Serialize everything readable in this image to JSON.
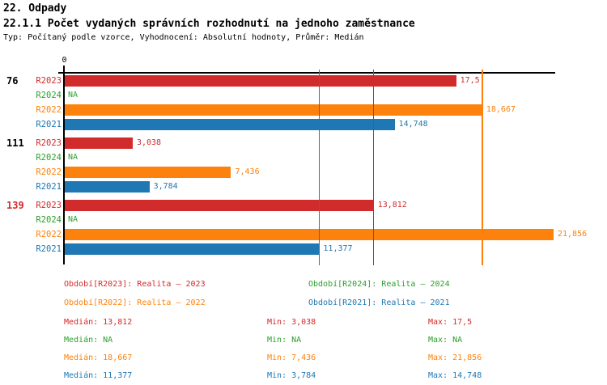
{
  "header": {
    "section_title": "22. Odpady",
    "chart_title": "22.1.1 Počet vydaných správních rozhodnutí na jednoho zaměstnance",
    "chart_subtitle": "Typ: Počítaný podle vzorce, Vyhodnocení: Absolutní hodnoty, Průměr: Medián"
  },
  "colors": {
    "R2023": "#D22B2B",
    "R2024": "#2CA02C",
    "R2022": "#FD810D",
    "R2021": "#1F77B4",
    "axis": "#000000"
  },
  "chart_data": {
    "type": "bar",
    "orientation": "horizontal",
    "x_axis": {
      "origin_label": "0",
      "min": 0,
      "max": 22,
      "gridlines": false
    },
    "series_order": [
      "R2023",
      "R2024",
      "R2022",
      "R2021"
    ],
    "groups": [
      {
        "label": "76",
        "label_color": "#000000",
        "bars": [
          {
            "series": "R2023",
            "value": 17.5,
            "label": "17,5"
          },
          {
            "series": "R2024",
            "value": null,
            "label": "NA"
          },
          {
            "series": "R2022",
            "value": 18.667,
            "label": "18,667"
          },
          {
            "series": "R2021",
            "value": 14.748,
            "label": "14,748"
          }
        ]
      },
      {
        "label": "111",
        "label_color": "#000000",
        "bars": [
          {
            "series": "R2023",
            "value": 3.038,
            "label": "3,038"
          },
          {
            "series": "R2024",
            "value": null,
            "label": "NA"
          },
          {
            "series": "R2022",
            "value": 7.436,
            "label": "7,436"
          },
          {
            "series": "R2021",
            "value": 3.784,
            "label": "3,784"
          }
        ]
      },
      {
        "label": "139",
        "label_color": "#D22B2B",
        "bars": [
          {
            "series": "R2023",
            "value": 13.812,
            "label": "13,812"
          },
          {
            "series": "R2024",
            "value": null,
            "label": "NA"
          },
          {
            "series": "R2022",
            "value": 21.856,
            "label": "21,856"
          },
          {
            "series": "R2021",
            "value": 11.377,
            "label": "11,377"
          }
        ]
      }
    ],
    "median_lines": [
      {
        "series": "R2023",
        "value": 13.812
      },
      {
        "series": "R2022",
        "value": 18.667
      },
      {
        "series": "R2021",
        "value": 11.377
      }
    ]
  },
  "legend": [
    {
      "series": "R2023",
      "text": "Období[R2023]: Realita – 2023"
    },
    {
      "series": "R2024",
      "text": "Období[R2024]: Realita – 2024"
    },
    {
      "series": "R2022",
      "text": "Období[R2022]: Realita – 2022"
    },
    {
      "series": "R2021",
      "text": "Období[R2021]: Realita – 2021"
    }
  ],
  "stats": {
    "median_label": "Medián",
    "min_label": "Min",
    "max_label": "Max",
    "rows": [
      {
        "series": "R2023",
        "median": "13,812",
        "min": "3,038",
        "max": "17,5"
      },
      {
        "series": "R2024",
        "median": "NA",
        "min": "NA",
        "max": "NA"
      },
      {
        "series": "R2022",
        "median": "18,667",
        "min": "7,436",
        "max": "21,856"
      },
      {
        "series": "R2021",
        "median": "11,377",
        "min": "3,784",
        "max": "14,748"
      }
    ]
  }
}
